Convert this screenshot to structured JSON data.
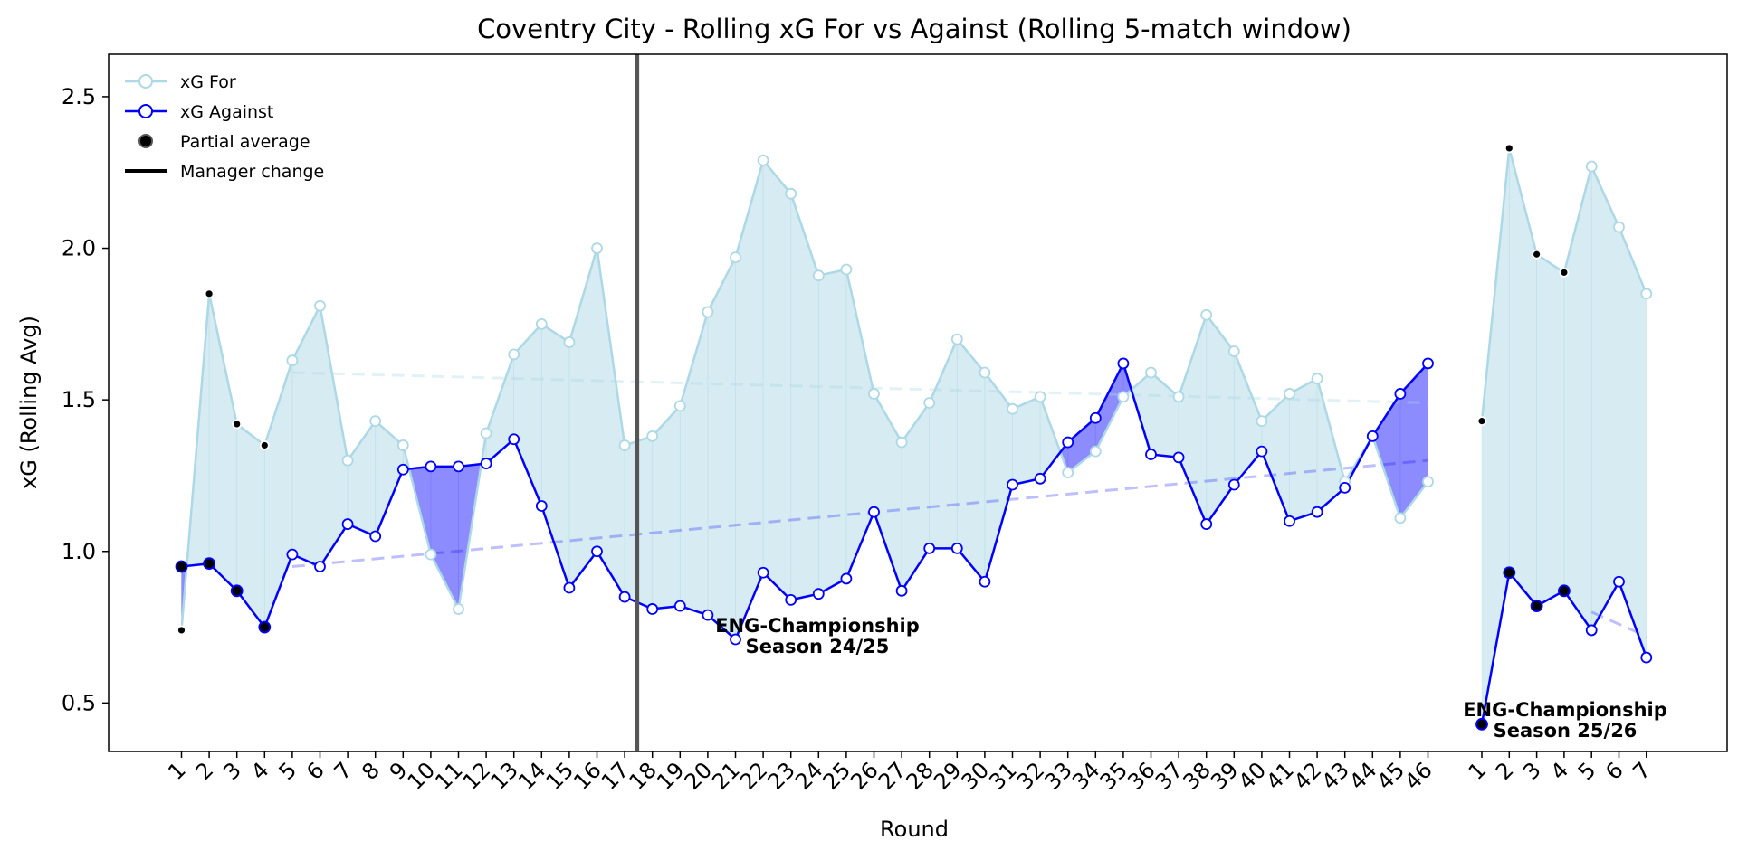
{
  "chart_data": {
    "type": "line",
    "title": "Coventry City - Rolling xG For vs Against (Rolling 5-match window)",
    "xlabel": "Round",
    "ylabel": "xG (Rolling Avg)",
    "ylim": [
      0.34,
      2.64
    ],
    "yticks": [
      0.5,
      1.0,
      1.5,
      2.0,
      2.5
    ],
    "grid": false,
    "legend_position": "top-left",
    "legend": [
      "xG For",
      "xG Against",
      "Partial average",
      "Manager change"
    ],
    "colors": {
      "xg_for": "#add8e6",
      "xg_against": "#0000ff",
      "fill_for": "#add8e6",
      "fill_against": "#6666ff",
      "partial": "#000000",
      "manager_change": "#555555"
    },
    "partial_rounds": [
      1,
      2,
      3,
      4
    ],
    "seasons": [
      {
        "label_line1": "ENG-Championship",
        "label_line2": "Season 24/25",
        "rounds": [
          "1",
          "2",
          "3",
          "4",
          "5",
          "6",
          "7",
          "8",
          "9",
          "10",
          "11",
          "12",
          "13",
          "14",
          "15",
          "16",
          "17",
          "18",
          "19",
          "20",
          "21",
          "22",
          "23",
          "24",
          "25",
          "26",
          "27",
          "28",
          "29",
          "30",
          "31",
          "32",
          "33",
          "34",
          "35",
          "36",
          "37",
          "38",
          "39",
          "40",
          "41",
          "42",
          "43",
          "44",
          "45",
          "46"
        ],
        "xg_for": [
          0.74,
          1.85,
          1.42,
          1.35,
          1.63,
          1.81,
          1.3,
          1.43,
          1.35,
          0.99,
          0.81,
          1.39,
          1.65,
          1.75,
          1.69,
          2.0,
          1.35,
          1.38,
          1.48,
          1.79,
          1.97,
          2.29,
          2.18,
          1.91,
          1.93,
          1.52,
          1.36,
          1.49,
          1.7,
          1.59,
          1.47,
          1.51,
          1.26,
          1.33,
          1.51,
          1.59,
          1.51,
          1.78,
          1.66,
          1.43,
          1.52,
          1.57,
          1.23,
          1.38,
          1.11,
          1.23
        ],
        "xg_against": [
          0.95,
          0.96,
          0.87,
          0.75,
          0.99,
          0.95,
          1.09,
          1.05,
          1.27,
          1.28,
          1.28,
          1.29,
          1.37,
          1.15,
          0.88,
          1.0,
          0.85,
          0.81,
          0.82,
          0.79,
          0.71,
          0.93,
          0.84,
          0.86,
          0.91,
          1.13,
          0.87,
          1.01,
          1.01,
          0.9,
          1.22,
          1.24,
          1.36,
          1.44,
          1.62,
          1.32,
          1.31,
          1.09,
          1.22,
          1.33,
          1.1,
          1.13,
          1.21,
          1.38,
          1.52,
          1.62
        ],
        "trend_for": [
          1.59,
          1.49
        ],
        "trend_against": [
          0.95,
          1.3
        ],
        "manager_change_after_round": 17
      },
      {
        "label_line1": "ENG-Championship",
        "label_line2": "Season 25/26",
        "rounds": [
          "1",
          "2",
          "3",
          "4",
          "5",
          "6",
          "7"
        ],
        "xg_for": [
          1.43,
          2.33,
          1.98,
          1.92,
          2.27,
          2.07,
          1.85
        ],
        "xg_against": [
          0.43,
          0.93,
          0.82,
          0.87,
          0.74,
          0.9,
          0.65
        ],
        "trend_against": [
          0.8,
          0.72
        ]
      }
    ]
  }
}
